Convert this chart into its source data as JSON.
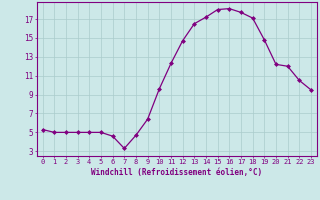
{
  "x": [
    0,
    1,
    2,
    3,
    4,
    5,
    6,
    7,
    8,
    9,
    10,
    11,
    12,
    13,
    14,
    15,
    16,
    17,
    18,
    19,
    20,
    21,
    22,
    23
  ],
  "y": [
    5.3,
    5.0,
    5.0,
    5.0,
    5.0,
    5.0,
    4.6,
    3.3,
    4.7,
    6.4,
    9.6,
    12.3,
    14.7,
    16.5,
    17.2,
    18.0,
    18.1,
    17.7,
    17.1,
    14.8,
    12.2,
    12.0,
    10.5,
    9.5
  ],
  "xlabel": "Windchill (Refroidissement éolien,°C)",
  "xticks": [
    0,
    1,
    2,
    3,
    4,
    5,
    6,
    7,
    8,
    9,
    10,
    11,
    12,
    13,
    14,
    15,
    16,
    17,
    18,
    19,
    20,
    21,
    22,
    23
  ],
  "yticks": [
    3,
    5,
    7,
    9,
    11,
    13,
    15,
    17
  ],
  "ylim": [
    2.5,
    18.8
  ],
  "xlim": [
    -0.5,
    23.5
  ],
  "line_color": "#800080",
  "marker": "D",
  "markersize": 2.0,
  "linewidth": 0.9,
  "bg_color": "#cce8e8",
  "grid_color": "#aacccc",
  "axis_color": "#800080",
  "tick_color": "#800080",
  "label_color": "#800080",
  "font_family": "monospace",
  "tick_fontsize": 5.0,
  "xlabel_fontsize": 5.5
}
